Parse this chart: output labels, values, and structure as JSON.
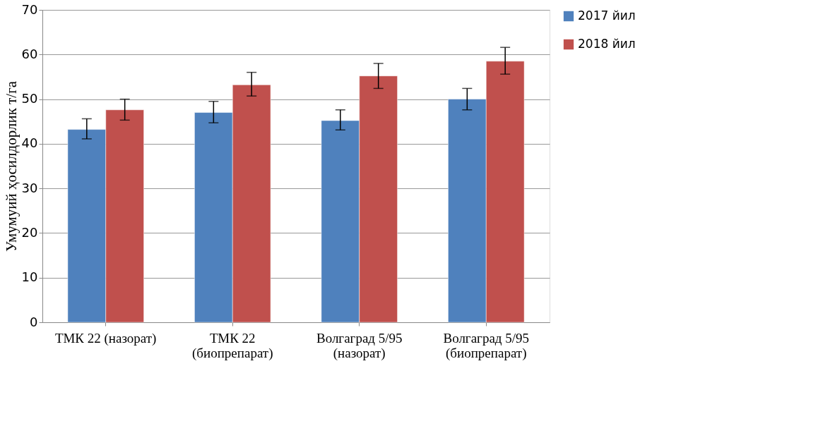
{
  "chart_data": {
    "type": "bar",
    "ylabel": "Умумуий ҳосилдорлик т/га",
    "categories": [
      "ТМК 22 (назорат)",
      "ТМК 22\n(биопрепарат)",
      "Волгаград 5/95\n(назорат)",
      "Волгаград 5/95\n(биопрепарат)"
    ],
    "series": [
      {
        "name": "2017 йил",
        "color": "#4f81bd",
        "values": [
          43.2,
          47.0,
          45.2,
          50.0
        ],
        "errors": [
          [
            41.1,
            45.6
          ],
          [
            44.7,
            49.5
          ],
          [
            43.1,
            47.6
          ],
          [
            47.6,
            52.4
          ]
        ]
      },
      {
        "name": "2018 йил",
        "color": "#c0504d",
        "values": [
          47.6,
          53.2,
          55.2,
          58.5
        ],
        "errors": [
          [
            45.3,
            50.0
          ],
          [
            50.7,
            56.0
          ],
          [
            52.4,
            58.0
          ],
          [
            55.6,
            61.6
          ]
        ]
      }
    ],
    "ylim": [
      0,
      70
    ],
    "yticks": [
      0,
      10,
      20,
      30,
      40,
      50,
      60,
      70
    ],
    "grid": "y",
    "legend": "right"
  }
}
